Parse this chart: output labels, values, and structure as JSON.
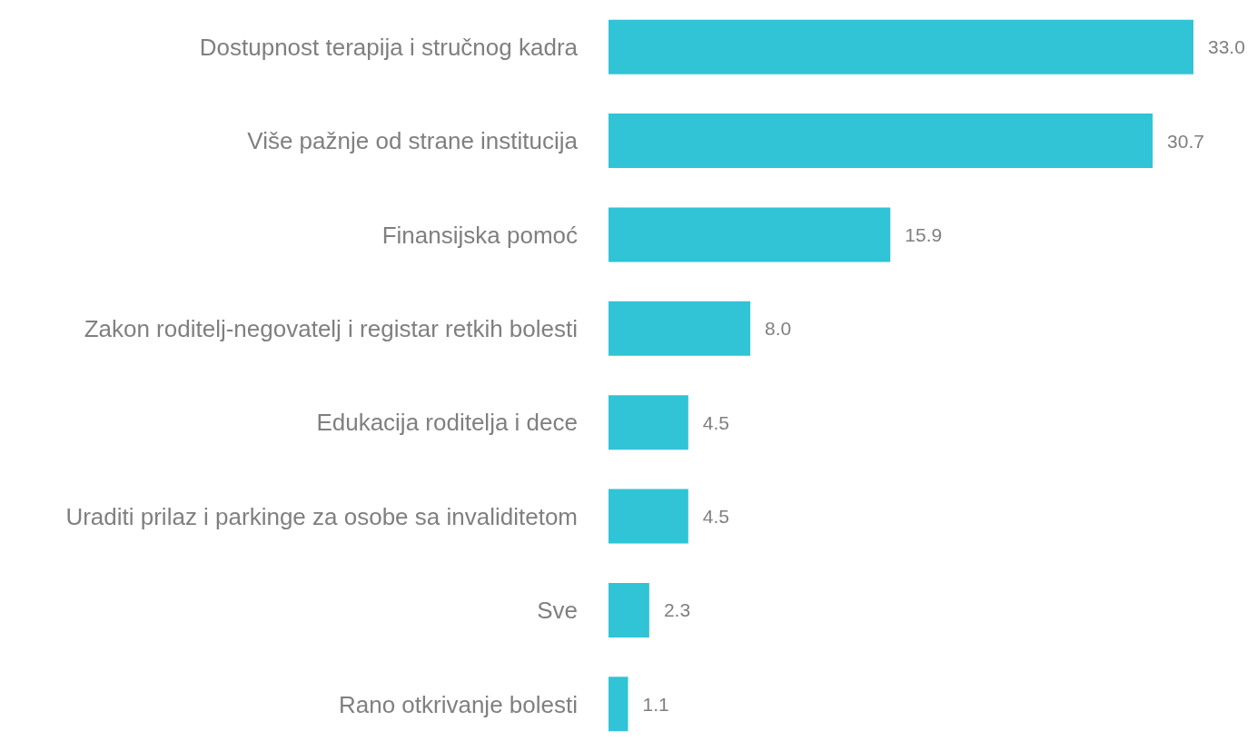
{
  "chart_data": {
    "type": "bar",
    "orientation": "horizontal",
    "categories": [
      "Dostupnost terapija i stručnog kadra",
      "Više pažnje od strane institucija",
      "Finansijska pomoć",
      "Zakon roditelj-negovatelj i registar retkih bolesti",
      "Edukacija roditelja i dece",
      "Uraditi prilaz i parkinge za osobe sa invaliditetom",
      "Sve",
      "Rano otkrivanje bolesti"
    ],
    "values": [
      33.0,
      30.7,
      15.9,
      8.0,
      4.5,
      4.5,
      2.3,
      1.1
    ],
    "value_labels": [
      "33.0",
      "30.7",
      "15.9",
      "8.0",
      "4.5",
      "4.5",
      "2.3",
      "1.1"
    ],
    "color": "#31c3d6"
  }
}
